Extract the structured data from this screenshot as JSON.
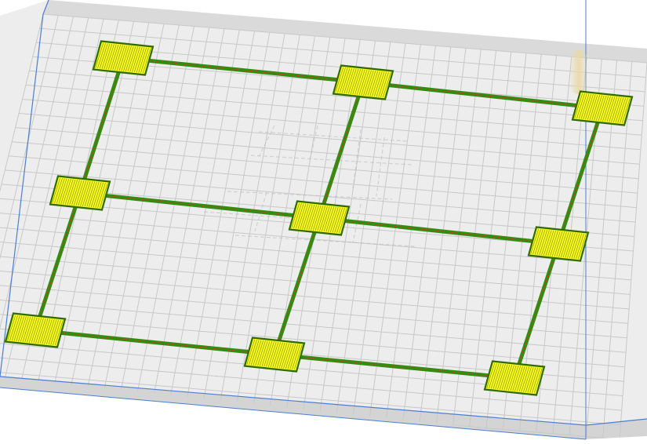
{
  "viewport": {
    "kind": "3d-print-preview",
    "colors": {
      "background": "#ffffff",
      "plate_top": "#ededed",
      "plate_side": "#d4d4d4",
      "plate_edge": "#4a7fd0",
      "grid": "#c8c8c8",
      "pad_fill": "#ffff1f",
      "pad_hatch": "#6b7d00",
      "pad_border": "#2f6b00",
      "line_green": "#2f8f10",
      "line_red": "#c93c22",
      "ghost": "#b9b9b9",
      "axis": "#4a7fd0",
      "marker": "#e9d8a8"
    },
    "model": {
      "rows": 3,
      "columns": 3,
      "pad_count": 9,
      "connector_count": 12
    }
  }
}
